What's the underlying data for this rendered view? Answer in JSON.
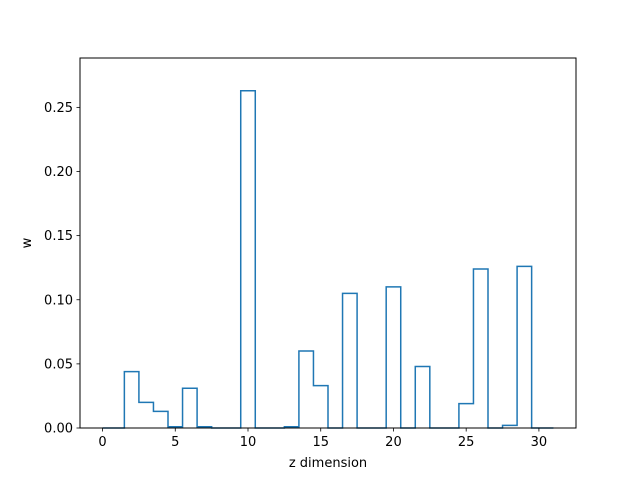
{
  "chart_data": {
    "type": "line",
    "drawstyle": "steps-mid",
    "title": "",
    "xlabel": "z dimension",
    "ylabel": "w",
    "xlim": [
      -1.55,
      32.55
    ],
    "ylim": [
      0,
      0.2885
    ],
    "xticks": [
      0,
      5,
      10,
      15,
      20,
      25,
      30
    ],
    "yticks": [
      0.0,
      0.05,
      0.1,
      0.15,
      0.2,
      0.25
    ],
    "ytick_labels": [
      "0.00",
      "0.05",
      "0.10",
      "0.15",
      "0.20",
      "0.25"
    ],
    "grid": false,
    "series_color": "#1f77b4",
    "x": [
      0,
      1,
      2,
      3,
      4,
      5,
      6,
      7,
      8,
      9,
      10,
      11,
      12,
      13,
      14,
      15,
      16,
      17,
      18,
      19,
      20,
      21,
      22,
      23,
      24,
      25,
      26,
      27,
      28,
      29,
      30,
      31
    ],
    "y": [
      0.0,
      0.0,
      0.044,
      0.02,
      0.013,
      0.001,
      0.031,
      0.001,
      0.0,
      0.0,
      0.263,
      0.0,
      0.0,
      0.001,
      0.06,
      0.033,
      0.0,
      0.105,
      0.0,
      0.0,
      0.11,
      0.0,
      0.048,
      0.0,
      0.0,
      0.019,
      0.124,
      0.0,
      0.002,
      0.126,
      0.0,
      0.0
    ]
  }
}
